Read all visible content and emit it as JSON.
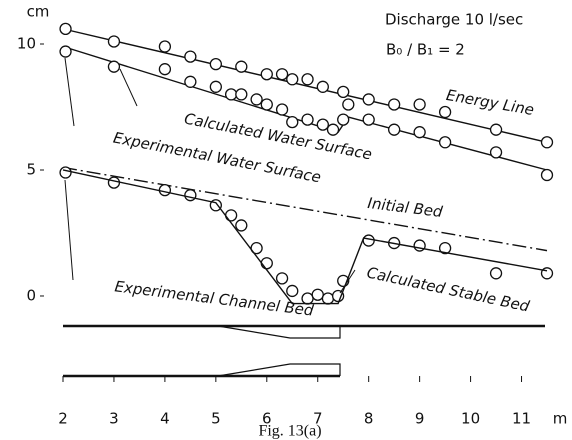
{
  "chart_data": {
    "type": "line",
    "ylabel": "cm",
    "xlabel": "m",
    "xlim": [
      2,
      11.5
    ],
    "ylim": [
      -0.6,
      11
    ],
    "xticks": [
      2,
      3,
      4,
      5,
      6,
      7,
      8,
      9,
      10,
      11
    ],
    "yticks": [
      0,
      5,
      10
    ],
    "annotations": [
      "Discharge 10 l/sec",
      "B₀ / B₁ = 2",
      "Fig. 13(a)"
    ],
    "series": [
      {
        "name": "Energy Line",
        "style": "solid",
        "color": "#111",
        "x": [
          2,
          11.5
        ],
        "values": [
          10.6,
          6.1
        ]
      },
      {
        "style": "points",
        "color": "#111",
        "x": [
          2.05,
          3,
          4,
          4.5,
          5,
          5.5,
          6,
          6.3,
          6.5,
          6.8,
          7.1,
          7.5,
          8,
          8.5,
          9,
          9.5,
          10.5,
          11.5
        ],
        "values": [
          10.6,
          10.1,
          9.9,
          9.5,
          9.2,
          9.1,
          8.8,
          8.8,
          8.6,
          8.6,
          8.3,
          8.1,
          7.8,
          7.6,
          7.6,
          7.3,
          6.6,
          6.1
        ]
      },
      {
        "name": "Calculated Water Surface",
        "style": "solid",
        "color": "#111",
        "x": [
          2,
          7.4,
          7.6,
          11.5
        ],
        "values": [
          9.9,
          6.5,
          7.1,
          5.0
        ]
      },
      {
        "name": "Experimental Water Surface",
        "style": "points",
        "color": "#111",
        "x": [
          2.05,
          3,
          4,
          4.5,
          5,
          5.3,
          5.5,
          5.8,
          6,
          6.3,
          6.5,
          6.8,
          7.1,
          7.3,
          7.5,
          7.6,
          8,
          8.5,
          9,
          9.5,
          10.5,
          11.5
        ],
        "values": [
          9.7,
          9.1,
          9.0,
          8.5,
          8.3,
          8.0,
          8.0,
          7.8,
          7.6,
          7.4,
          6.9,
          7.0,
          6.8,
          6.6,
          7.0,
          7.6,
          7.0,
          6.6,
          6.5,
          6.1,
          5.7,
          4.8
        ]
      },
      {
        "name": "Initial Bed",
        "style": "dashdot",
        "color": "#111",
        "x": [
          2,
          11.5
        ],
        "values": [
          5.1,
          1.8
        ]
      },
      {
        "name": "Experimental Channel Bed",
        "style": "points",
        "color": "#111",
        "x": [
          2.05,
          3,
          4,
          4.5,
          5,
          5.3,
          5.5,
          5.8,
          6,
          6.3,
          6.5,
          6.8,
          7,
          7.2,
          7.4,
          7.5,
          8,
          8.5,
          9,
          9.5,
          10.5,
          11.5
        ],
        "values": [
          4.9,
          4.5,
          4.2,
          4.0,
          3.6,
          3.2,
          2.8,
          1.9,
          1.3,
          0.7,
          0.2,
          -0.1,
          0.05,
          -0.1,
          0,
          0.6,
          2.2,
          2.1,
          2.0,
          1.9,
          0.9,
          0.9
        ]
      },
      {
        "name": "Calculated Stable Bed",
        "style": "solid",
        "color": "#111",
        "x": [
          2,
          5,
          6.5,
          7.4,
          7.9,
          11.5
        ],
        "values": [
          5.0,
          3.7,
          -0.3,
          -0.3,
          2.3,
          1.0
        ]
      }
    ]
  }
}
